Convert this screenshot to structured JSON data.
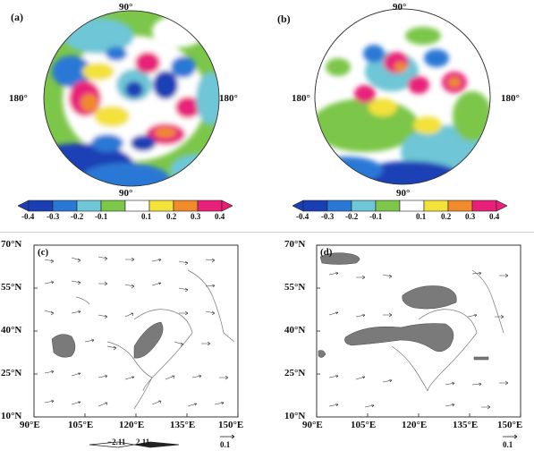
{
  "top": {
    "a": {
      "label": "(a)",
      "top_lon": "90°",
      "left_lon": "180°",
      "right_lon": "180°",
      "bottom_lon": "90°"
    },
    "b": {
      "label": "(b)",
      "top_lon": "90°",
      "left_lon": "180°",
      "right_lon": "180°",
      "bottom_lon": "90°"
    },
    "colorbar": {
      "ticks": [
        "-0.4",
        "-0.3",
        "-0.2",
        "-0.1",
        "0.1",
        "0.2",
        "0.3",
        "0.4"
      ],
      "colors": [
        "#1a3fb5",
        "#2a78d6",
        "#6ec6d6",
        "#7cc64a",
        "#ffffff",
        "#f3e23a",
        "#f08a2a",
        "#e8207a"
      ]
    }
  },
  "bottom": {
    "c": {
      "label": "(c)",
      "y_ticks": [
        "70°N",
        "55°N",
        "40°N",
        "25°N",
        "10°N"
      ],
      "x_ticks": [
        "90°E",
        "105°E",
        "120°E",
        "135°E",
        "150°E"
      ],
      "ref_vector": "0.1",
      "scale_left": "−2.11",
      "scale_right": "2.11"
    },
    "d": {
      "label": "(d)",
      "y_ticks": [
        "70°N",
        "55°N",
        "40°N",
        "25°N",
        "10°N"
      ],
      "x_ticks": [
        "90°E",
        "105°E",
        "120°E",
        "135°E",
        "150°E"
      ],
      "ref_vector": "0.1"
    }
  }
}
